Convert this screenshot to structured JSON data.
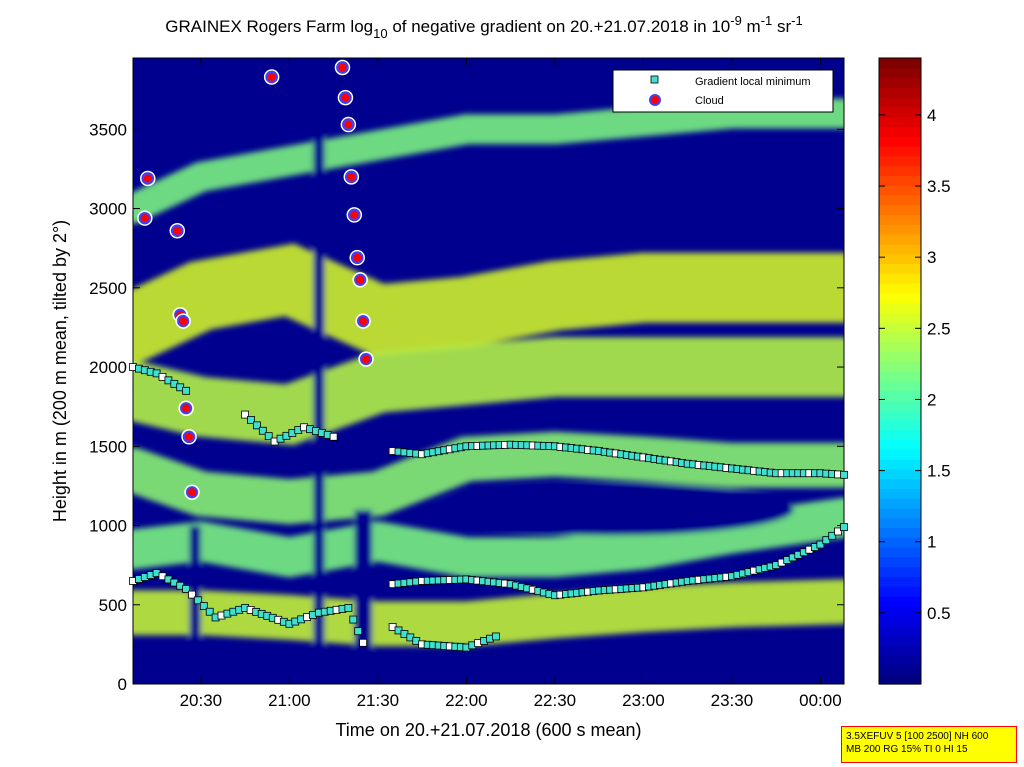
{
  "title": {
    "prefix": "GRAINEX Rogers Farm log",
    "sub": "10",
    "mid": " of negative gradient on 20.+21.07.2018 in 10",
    "sup1": "-9",
    "mid2": " m",
    "sup2": "-1",
    "end": " sr",
    "sup3": "-1"
  },
  "info_box": {
    "line1": "3.5XEFUV 5 [100 2500] NH 600",
    "line2": "MB 200 RG 15% TI 0 HI 15"
  },
  "colors": {
    "background_low": "#00008f",
    "mid": "#00c8ff",
    "high": "#800000",
    "gradient_marker": "#40e0d0",
    "cloud_marker_fill": "#ff0000",
    "cloud_marker_edge": "#4040ff"
  },
  "chart_data": {
    "type": "heatmap",
    "xlabel": "Time on 20.+21.07.2018 (600 s mean)",
    "ylabel": "Height in m (200 m mean, tilted by 2°)",
    "xlim": [
      "20:07",
      "00:08"
    ],
    "ylim": [
      0,
      3950
    ],
    "x_ticks": [
      "20:30",
      "21:00",
      "21:30",
      "22:00",
      "22:30",
      "23:00",
      "23:30",
      "00:00"
    ],
    "y_ticks": [
      0,
      500,
      1000,
      1500,
      2000,
      2500,
      3000,
      3500
    ],
    "colorbar": {
      "range": [
        0,
        4.4
      ],
      "ticks": [
        "0.5",
        "1",
        "1.5",
        "2",
        "2.5",
        "3",
        "3.5",
        "4"
      ],
      "colormap": "jet"
    },
    "legend": {
      "placement": "top-right",
      "entries": [
        "Gradient local minimum",
        "Cloud"
      ]
    },
    "series": [
      {
        "name": "Gradient local minimum",
        "layers": [
          {
            "times": [
              "20:07",
              "20:15",
              "20:25",
              "20:35",
              "20:45",
              "21:00",
              "21:10",
              "21:20",
              "21:25"
            ],
            "heights": [
              650,
              700,
              600,
              420,
              480,
              380,
              450,
              480,
              260
            ]
          },
          {
            "times": [
              "21:35",
              "21:45",
              "22:00",
              "22:15",
              "22:30",
              "22:45",
              "23:00",
              "23:15",
              "23:30",
              "23:45",
              "00:00",
              "00:08"
            ],
            "heights": [
              630,
              650,
              660,
              630,
              560,
              590,
              610,
              650,
              680,
              750,
              880,
              990
            ]
          },
          {
            "times": [
              "21:35",
              "21:45",
              "22:00",
              "22:15",
              "22:30",
              "22:45",
              "23:00",
              "23:15",
              "23:30",
              "23:45",
              "00:00",
              "00:08"
            ],
            "heights": [
              1470,
              1450,
              1500,
              1510,
              1500,
              1470,
              1430,
              1390,
              1360,
              1330,
              1330,
              1320
            ]
          },
          {
            "times": [
              "21:35",
              "21:45",
              "22:00",
              "22:10"
            ],
            "heights": [
              360,
              250,
              230,
              300
            ]
          },
          {
            "times": [
              "20:07",
              "20:15",
              "20:25"
            ],
            "heights": [
              2000,
              1960,
              1850
            ]
          },
          {
            "times": [
              "20:45",
              "20:55",
              "21:05",
              "21:15"
            ],
            "heights": [
              1700,
              1530,
              1620,
              1560
            ]
          }
        ]
      },
      {
        "name": "Cloud",
        "times": [
          "20:12",
          "20:11",
          "20:22",
          "20:23",
          "20:24",
          "20:25",
          "20:26",
          "20:27",
          "20:54",
          "21:18",
          "21:19",
          "21:20",
          "21:21",
          "21:22",
          "21:23",
          "21:24",
          "21:25",
          "21:26"
        ],
        "heights": [
          3190,
          2940,
          2860,
          2330,
          2290,
          1740,
          1560,
          1210,
          3830,
          3890,
          3700,
          3530,
          3200,
          2960,
          2690,
          2550,
          2290,
          2050
        ]
      }
    ]
  }
}
